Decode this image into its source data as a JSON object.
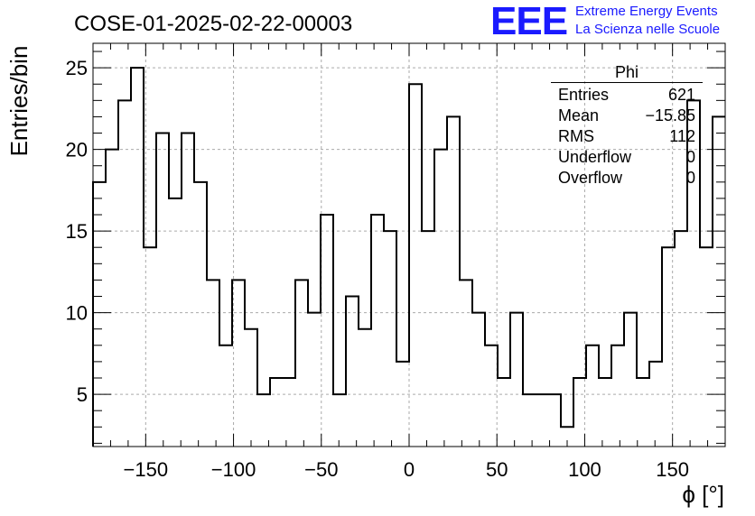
{
  "title": "COSE-01-2025-02-22-00003",
  "logo": {
    "mark": "EEE",
    "line1": "Extreme Energy Events",
    "line2": "La Scienza nelle Scuole",
    "color": "#1a1aff"
  },
  "stats": {
    "name": "Phi",
    "rows": [
      {
        "label": "Entries",
        "value": "621"
      },
      {
        "label": "Mean",
        "value": "−15.85"
      },
      {
        "label": "RMS",
        "value": "112"
      },
      {
        "label": "Underflow",
        "value": "0"
      },
      {
        "label": "Overflow",
        "value": "0"
      }
    ]
  },
  "chart_data": {
    "type": "histogram",
    "title": "COSE-01-2025-02-22-00003",
    "xlabel": "ϕ [°]",
    "ylabel": "Entries/bin",
    "xlim": [
      -180,
      180
    ],
    "ylim": [
      1.8,
      26.5
    ],
    "grid": true,
    "bin_width": 7.2,
    "bin_edges_start": -180,
    "values": [
      18,
      20,
      23,
      25,
      14,
      21,
      17,
      21,
      18,
      12,
      8,
      12,
      9,
      5,
      6,
      6,
      12,
      10,
      16,
      5,
      11,
      9,
      16,
      15,
      7,
      24,
      15,
      20,
      22,
      12,
      10,
      8,
      6,
      10,
      5,
      5,
      5,
      3,
      6,
      8,
      6,
      8,
      10,
      6,
      7,
      14,
      15,
      23,
      14,
      22
    ],
    "xticks": [
      -150,
      -100,
      -50,
      0,
      50,
      100,
      150
    ],
    "xtick_labels": [
      "−150",
      "−100",
      "−50",
      "0",
      "50",
      "100",
      "150"
    ],
    "yticks": [
      5,
      10,
      15,
      20,
      25
    ],
    "ytick_labels": [
      "5",
      "10",
      "15",
      "20",
      "25"
    ],
    "line_color": "#000000"
  }
}
